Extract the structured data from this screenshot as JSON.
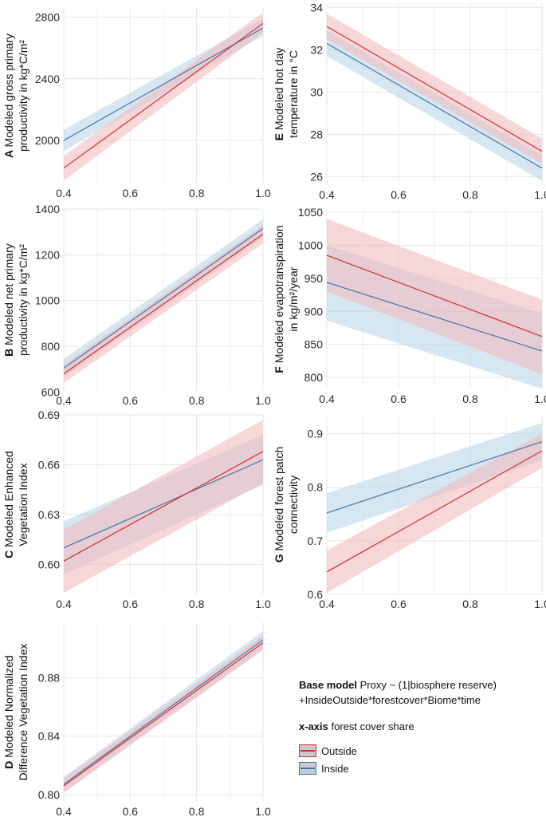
{
  "colors": {
    "outside_line": "#d62f2f",
    "outside_fill": "#f2b6b9",
    "inside_line": "#3f77a8",
    "inside_fill": "#b7d3e6",
    "grid": "#e7e7e7",
    "tick_text": "#2a2a2a"
  },
  "legend": {
    "model_title": "Base model",
    "model_formula_1": "Proxy ~ (1|biosphere reserve)",
    "model_formula_2": "+InsideOutside*forestcover*Biome*time",
    "xaxis_title": "x-axis",
    "xaxis_text": "forest cover share",
    "outside_label": "Outside",
    "inside_label": "Inside"
  },
  "chart_data": [
    {
      "id": "A",
      "type": "line",
      "ylabel_1": "Modeled gross primary",
      "ylabel_2": "productivity in kg*C/m²",
      "xlim": [
        0.4,
        1.0
      ],
      "xticks": [
        "0.4",
        "0.6",
        "0.8",
        "1.0"
      ],
      "ylim": [
        1720,
        2860
      ],
      "yticks": [
        "2000",
        "2400",
        "2800"
      ],
      "series": [
        {
          "name": "Outside",
          "x": [
            0.4,
            1.0
          ],
          "y": [
            1820,
            2760
          ],
          "lower": [
            1740,
            2700
          ],
          "upper": [
            1900,
            2830
          ]
        },
        {
          "name": "Inside",
          "x": [
            0.4,
            1.0
          ],
          "y": [
            2000,
            2730
          ],
          "lower": [
            1930,
            2680
          ],
          "upper": [
            2070,
            2790
          ]
        }
      ]
    },
    {
      "id": "E",
      "type": "line",
      "ylabel_1": "Modeled hot day",
      "ylabel_2": "temperature in °C",
      "xlim": [
        0.4,
        1.0
      ],
      "xticks": [
        "0.4",
        "0.6",
        "0.8",
        "1.0"
      ],
      "ylim": [
        25.6,
        34.2
      ],
      "yticks": [
        "26",
        "28",
        "30",
        "32",
        "34"
      ],
      "series": [
        {
          "name": "Outside",
          "x": [
            0.4,
            1.0
          ],
          "y": [
            33.1,
            27.2
          ],
          "lower": [
            32.5,
            26.6
          ],
          "upper": [
            33.7,
            27.8
          ]
        },
        {
          "name": "Inside",
          "x": [
            0.4,
            1.0
          ],
          "y": [
            32.3,
            26.4
          ],
          "lower": [
            31.7,
            25.8
          ],
          "upper": [
            32.9,
            27.0
          ]
        }
      ]
    },
    {
      "id": "B",
      "type": "line",
      "ylabel_1": "Modeled net primary",
      "ylabel_2": "productivity in kg*C/m²",
      "xlim": [
        0.4,
        1.0
      ],
      "xticks": [
        "0.4",
        "0.6",
        "0.8",
        "1.0"
      ],
      "ylim": [
        605,
        1400
      ],
      "yticks": [
        "600",
        "800",
        "1000",
        "1200",
        "1400"
      ],
      "series": [
        {
          "name": "Outside",
          "x": [
            0.4,
            1.0
          ],
          "y": [
            680,
            1290
          ],
          "lower": [
            640,
            1250
          ],
          "upper": [
            720,
            1330
          ]
        },
        {
          "name": "Inside",
          "x": [
            0.4,
            1.0
          ],
          "y": [
            705,
            1315
          ],
          "lower": [
            665,
            1275
          ],
          "upper": [
            745,
            1355
          ]
        }
      ]
    },
    {
      "id": "F",
      "type": "line",
      "ylabel_1": "Modeled evapotranspiration",
      "ylabel_2": "in kg/m²/year",
      "xlim": [
        0.4,
        1.0
      ],
      "xticks": [
        "0.4",
        "0.6",
        "0.8",
        "1.0"
      ],
      "ylim": [
        782,
        1055
      ],
      "yticks": [
        "800",
        "850",
        "900",
        "950",
        "1000",
        "1050"
      ],
      "series": [
        {
          "name": "Outside",
          "x": [
            0.4,
            1.0
          ],
          "y": [
            985,
            862
          ],
          "lower": [
            930,
            805
          ],
          "upper": [
            1040,
            918
          ]
        },
        {
          "name": "Inside",
          "x": [
            0.4,
            1.0
          ],
          "y": [
            944,
            840
          ],
          "lower": [
            886,
            783
          ],
          "upper": [
            1000,
            897
          ]
        }
      ]
    },
    {
      "id": "C",
      "type": "line",
      "ylabel_1": "Modeled Enhanced",
      "ylabel_2": "Vegetation Index",
      "xlim": [
        0.4,
        1.0
      ],
      "xticks": [
        "0.4",
        "0.6",
        "0.8",
        "1.0"
      ],
      "ylim": [
        0.582,
        0.69
      ],
      "yticks": [
        "0.60",
        "0.63",
        "0.66",
        "0.69"
      ],
      "series": [
        {
          "name": "Outside",
          "x": [
            0.4,
            1.0
          ],
          "y": [
            0.602,
            0.668
          ],
          "lower": [
            0.583,
            0.649
          ],
          "upper": [
            0.621,
            0.687
          ]
        },
        {
          "name": "Inside",
          "x": [
            0.4,
            1.0
          ],
          "y": [
            0.61,
            0.663
          ],
          "lower": [
            0.594,
            0.648
          ],
          "upper": [
            0.626,
            0.678
          ]
        }
      ]
    },
    {
      "id": "G",
      "type": "line",
      "ylabel_1": "Modeled forest patch",
      "ylabel_2": "connectivity",
      "xlim": [
        0.4,
        1.0
      ],
      "xticks": [
        "0.4",
        "0.6",
        "0.8",
        "1.0"
      ],
      "ylim": [
        0.6,
        0.935
      ],
      "yticks": [
        "0.6",
        "0.7",
        "0.8",
        "0.9"
      ],
      "series": [
        {
          "name": "Outside",
          "x": [
            0.4,
            1.0
          ],
          "y": [
            0.642,
            0.868
          ],
          "lower": [
            0.603,
            0.836
          ],
          "upper": [
            0.682,
            0.9
          ]
        },
        {
          "name": "Inside",
          "x": [
            0.4,
            1.0
          ],
          "y": [
            0.752,
            0.885
          ],
          "lower": [
            0.715,
            0.85
          ],
          "upper": [
            0.789,
            0.92
          ]
        }
      ]
    },
    {
      "id": "D",
      "type": "line",
      "ylabel_1": "Modeled Normalized",
      "ylabel_2": "Difference Vegetation Index",
      "xlim": [
        0.4,
        1.0
      ],
      "xticks": [
        "0.4",
        "0.6",
        "0.8",
        "1.0"
      ],
      "ylim": [
        0.795,
        0.918
      ],
      "yticks": [
        "0.80",
        "0.84",
        "0.88"
      ],
      "series": [
        {
          "name": "Outside",
          "x": [
            0.4,
            1.0
          ],
          "y": [
            0.806,
            0.904
          ],
          "lower": [
            0.801,
            0.899
          ],
          "upper": [
            0.811,
            0.909
          ]
        },
        {
          "name": "Inside",
          "x": [
            0.4,
            1.0
          ],
          "y": [
            0.807,
            0.906
          ],
          "lower": [
            0.802,
            0.9
          ],
          "upper": [
            0.812,
            0.912
          ]
        }
      ]
    }
  ]
}
